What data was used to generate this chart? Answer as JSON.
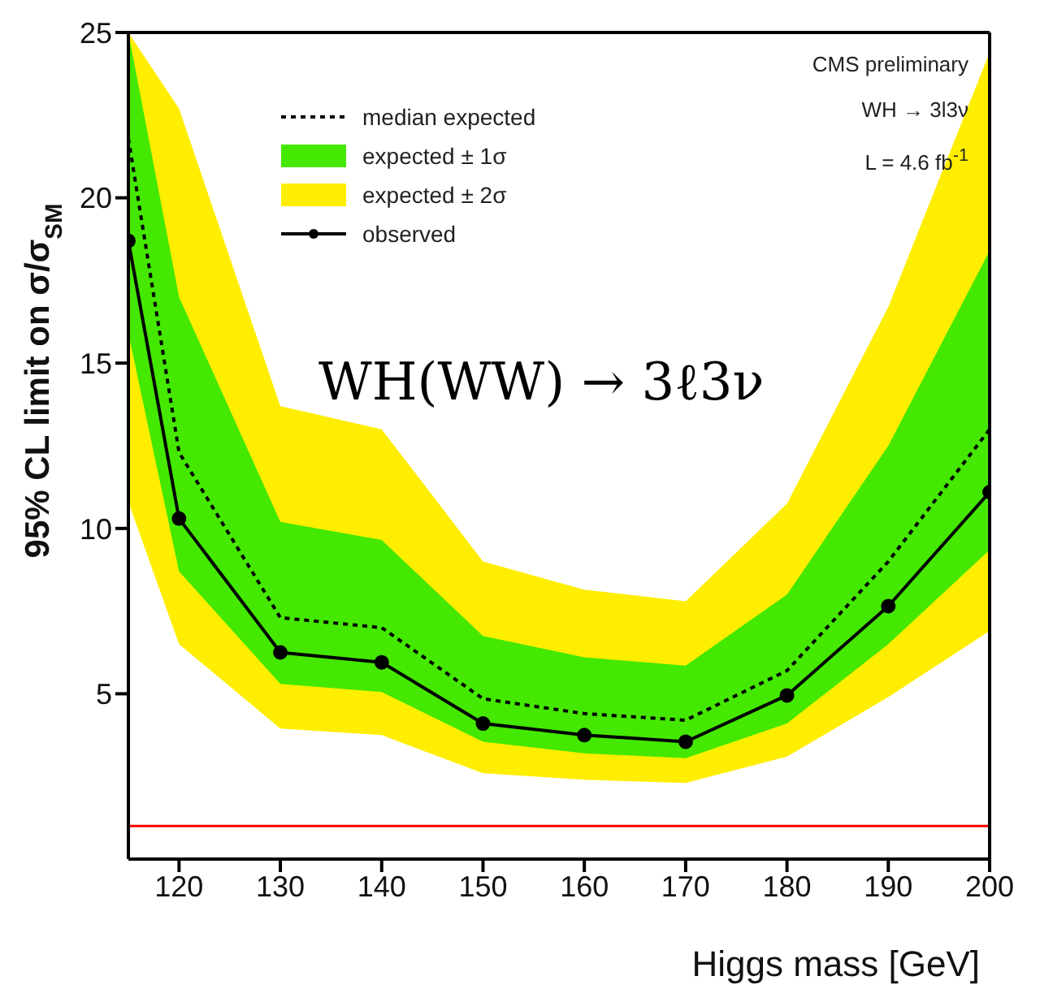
{
  "chart_data": {
    "type": "line",
    "title": "WH(WW) → 3ℓ3ν",
    "xlabel": "Higgs mass [GeV]",
    "ylabel": "95% CL limit on σ/σ$_{SM}$",
    "annotations": [
      "CMS preliminary",
      "WH → 3l3ν",
      "L = 4.6 fb$^{-1}$"
    ],
    "x": [
      115,
      120,
      130,
      140,
      150,
      160,
      170,
      180,
      190,
      200
    ],
    "series": [
      {
        "name": "median expected",
        "color": "#000000",
        "line_style": "dotted",
        "marker": "none",
        "values": [
          21.8,
          12.3,
          7.3,
          7.0,
          4.85,
          4.4,
          4.2,
          5.7,
          9.0,
          13.0
        ]
      },
      {
        "name": "expected ± 1σ",
        "type": "area",
        "color": "#44e800",
        "values": [
          null,
          null,
          null,
          null,
          null,
          null,
          null,
          null,
          null,
          null
        ],
        "lower": [
          15.9,
          8.7,
          5.3,
          5.05,
          3.55,
          3.2,
          3.05,
          4.1,
          6.5,
          9.35
        ],
        "upper": [
          25,
          17.0,
          10.2,
          9.65,
          6.75,
          6.1,
          5.85,
          8.0,
          12.5,
          18.4
        ]
      },
      {
        "name": "expected ± 2σ",
        "type": "area",
        "color": "#ffee00",
        "values": [
          null,
          null,
          null,
          null,
          null,
          null,
          null,
          null,
          null,
          null
        ],
        "lower": [
          10.8,
          6.5,
          3.95,
          3.75,
          2.6,
          2.4,
          2.3,
          3.1,
          4.9,
          6.9
        ],
        "upper": [
          25,
          22.7,
          13.7,
          13.0,
          9.0,
          8.15,
          7.8,
          10.75,
          16.7,
          24.4
        ]
      },
      {
        "name": "observed",
        "color": "#000000",
        "line_style": "solid",
        "marker": "circle",
        "values": [
          18.7,
          10.3,
          6.25,
          5.95,
          4.1,
          3.75,
          3.55,
          4.95,
          7.65,
          11.1
        ]
      }
    ],
    "xlim": [
      115,
      200
    ],
    "xticks": [
      120,
      130,
      140,
      150,
      160,
      170,
      180,
      190,
      200
    ],
    "ylim": [
      0,
      25
    ],
    "yticks": [
      5,
      10,
      15,
      20,
      25
    ],
    "ref_lines": [
      {
        "axis": "y",
        "value": 1,
        "color": "#ff0000"
      }
    ],
    "legend": "top left",
    "grid": false
  }
}
